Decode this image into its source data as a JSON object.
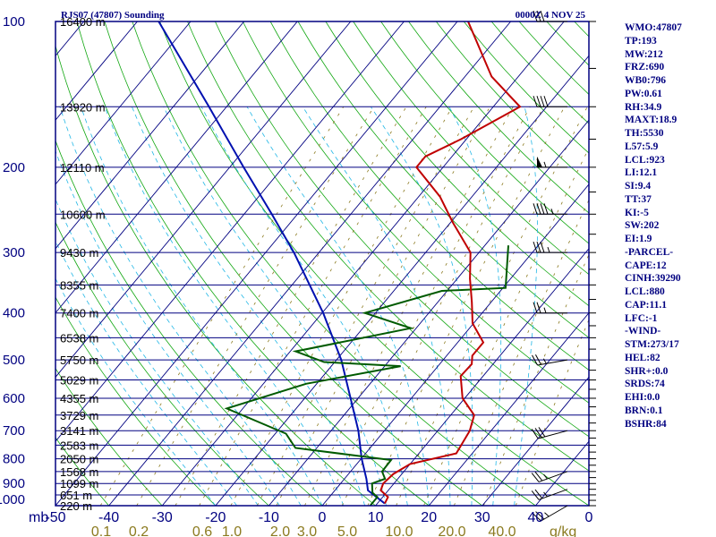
{
  "header": {
    "station": "RJS07 (47807) Sounding",
    "valid": "0000Z  4 NOV 25"
  },
  "colors": {
    "border": "#000080",
    "isobar": "#000080",
    "isotherm": "#000080",
    "dry_adiabat": "#12a712",
    "moist_adiabat": "#22b7e6",
    "mixing_ratio": "#8b7a1f",
    "temperature": "#c00000",
    "dewpoint": "#005a00",
    "parcel": "#0010b0",
    "wind": "#000000"
  },
  "chart_data": {
    "type": "skew-t log-p",
    "title": "RJS07 (47807) Sounding",
    "pressure_unit": "mb",
    "pressure_range": [
      1000,
      100
    ],
    "temperature_range": [
      -50,
      50
    ],
    "pressure_labels": [
      100,
      200,
      300,
      400,
      500,
      600,
      700,
      800,
      900,
      1000
    ],
    "temperature_labels": [
      "-50",
      "-40",
      "-30",
      "-20",
      "-10",
      "0",
      "10",
      "20",
      "30",
      "40",
      "0"
    ],
    "mixing_ratio_unit": "g/kg",
    "mixing_ratio_labels": [
      "0.1",
      "0.2",
      "0.6",
      "1.0",
      "2.0",
      "3.0",
      "5.0",
      "10.0",
      "20.0",
      "40.0"
    ],
    "height_labels": [
      {
        "p": 100,
        "text": "16400 m"
      },
      {
        "p": 150,
        "text": "13920 m"
      },
      {
        "p": 200,
        "text": "12110 m"
      },
      {
        "p": 250,
        "text": "10600 m"
      },
      {
        "p": 300,
        "text": "9430 m"
      },
      {
        "p": 350,
        "text": "8355 m"
      },
      {
        "p": 400,
        "text": "7400 m"
      },
      {
        "p": 450,
        "text": "6538 m"
      },
      {
        "p": 500,
        "text": "5750 m"
      },
      {
        "p": 550,
        "text": "5029 m"
      },
      {
        "p": 600,
        "text": "4355 m"
      },
      {
        "p": 650,
        "text": "3729 m"
      },
      {
        "p": 700,
        "text": "3141 m"
      },
      {
        "p": 750,
        "text": "2583 m"
      },
      {
        "p": 800,
        "text": "2050 m"
      },
      {
        "p": 850,
        "text": "1568 m"
      },
      {
        "p": 900,
        "text": "1099 m"
      },
      {
        "p": 950,
        "text": "651 m"
      },
      {
        "p": 1000,
        "text": "220 m"
      }
    ],
    "temperature": [
      {
        "p": 990,
        "t": 11.4
      },
      {
        "p": 960,
        "t": 11.0
      },
      {
        "p": 930,
        "t": 8.6
      },
      {
        "p": 900,
        "t": 8.0
      },
      {
        "p": 860,
        "t": 8.4
      },
      {
        "p": 820,
        "t": 10.0
      },
      {
        "p": 780,
        "t": 17.0
      },
      {
        "p": 700,
        "t": 16.0
      },
      {
        "p": 650,
        "t": 14.4
      },
      {
        "p": 600,
        "t": 9.6
      },
      {
        "p": 540,
        "t": 5.8
      },
      {
        "p": 510,
        "t": 6.0
      },
      {
        "p": 490,
        "t": 4.8
      },
      {
        "p": 460,
        "t": 4.8
      },
      {
        "p": 420,
        "t": -0.2
      },
      {
        "p": 380,
        "t": -3.6
      },
      {
        "p": 340,
        "t": -7.6
      },
      {
        "p": 300,
        "t": -11.6
      },
      {
        "p": 260,
        "t": -19.6
      },
      {
        "p": 230,
        "t": -26.0
      },
      {
        "p": 200,
        "t": -35.0
      },
      {
        "p": 190,
        "t": -35.0
      },
      {
        "p": 175,
        "t": -31.0
      },
      {
        "p": 150,
        "t": -25.0
      },
      {
        "p": 130,
        "t": -35.0
      },
      {
        "p": 100,
        "t": -48.0
      }
    ],
    "dewpoint": [
      {
        "p": 1000,
        "td": 9.0
      },
      {
        "p": 960,
        "td": 9.0
      },
      {
        "p": 940,
        "td": 7.4
      },
      {
        "p": 900,
        "td": 5.9
      },
      {
        "p": 880,
        "td": 7.6
      },
      {
        "p": 850,
        "td": 5.9
      },
      {
        "p": 805,
        "td": 5.8
      },
      {
        "p": 760,
        "td": -14.0
      },
      {
        "p": 710,
        "td": -18.0
      },
      {
        "p": 630,
        "td": -33.0
      },
      {
        "p": 560,
        "td": -22.0
      },
      {
        "p": 515,
        "td": -7.0
      },
      {
        "p": 505,
        "td": -22.0
      },
      {
        "p": 480,
        "td": -29.0
      },
      {
        "p": 430,
        "td": -11.0
      },
      {
        "p": 400,
        "td": -22.0
      },
      {
        "p": 360,
        "td": -11.0
      },
      {
        "p": 355,
        "td": 0.5
      },
      {
        "p": 290,
        "td": -5.6
      }
    ],
    "parcel": [
      {
        "p": 990,
        "t": 11.4
      },
      {
        "p": 930,
        "t": 6.2
      },
      {
        "p": 880,
        "t": 4.1
      },
      {
        "p": 800,
        "t": 0.1
      },
      {
        "p": 700,
        "t": -4.9
      },
      {
        "p": 600,
        "t": -11.4
      },
      {
        "p": 500,
        "t": -19.1
      },
      {
        "p": 400,
        "t": -29.8
      },
      {
        "p": 300,
        "t": -44.7
      },
      {
        "p": 250,
        "t": -54.8
      },
      {
        "p": 200,
        "t": -67.4
      },
      {
        "p": 150,
        "t": -83.3
      },
      {
        "p": 100,
        "t": -106.0
      }
    ],
    "wind_barbs": [
      {
        "p": 1000,
        "dir": 240,
        "spd": 25
      },
      {
        "p": 925,
        "dir": 250,
        "spd": 25
      },
      {
        "p": 850,
        "dir": 250,
        "spd": 25
      },
      {
        "p": 700,
        "dir": 255,
        "spd": 30
      },
      {
        "p": 500,
        "dir": 260,
        "spd": 25
      },
      {
        "p": 400,
        "dir": 270,
        "spd": 25
      },
      {
        "p": 300,
        "dir": 270,
        "spd": 35
      },
      {
        "p": 250,
        "dir": 270,
        "spd": 45
      },
      {
        "p": 200,
        "dir": 270,
        "spd": 55
      },
      {
        "p": 150,
        "dir": 270,
        "spd": 40
      },
      {
        "p": 100,
        "dir": 270,
        "spd": 30
      }
    ]
  },
  "indices": [
    "WMO:47807",
    "TP:193",
    "MW:212",
    "FRZ:690",
    "WB0:796",
    "PW:0.61",
    "RH:34.9",
    "MAXT:18.9",
    "TH:5530",
    "L57:5.9",
    "LCL:923",
    "LI:12.1",
    "SI:9.4",
    "TT:37",
    "KI:-5",
    "SW:202",
    "EI:1.9",
    "-PARCEL-",
    "CAPE:12",
    "CINH:39290",
    "LCL:880",
    "CAP:11.1",
    "LFC:-1",
    "-WIND-",
    "STM:273/17",
    "HEL:82",
    "SHR+:0.0",
    "SRDS:74",
    "EHI:0.0",
    "BRN:0.1",
    "BSHR:84"
  ]
}
